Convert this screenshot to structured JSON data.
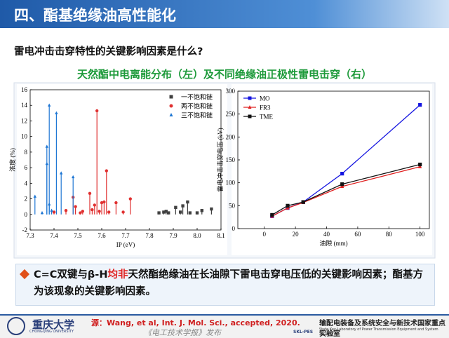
{
  "header": {
    "title": "四、酯基绝缘油高性能化"
  },
  "question": "雷电冲击击穿特性的关键影响因素是什么?",
  "subtitle": "天然酯中电离能分布（左）及不同绝缘油正极性雷电击穿（右）",
  "chart_data": [
    {
      "type": "stem",
      "xlabel": "IP (eV)",
      "ylabel": "浓度 (%)",
      "xlim": [
        7.3,
        8.1
      ],
      "xticks": [
        7.3,
        7.4,
        7.5,
        7.6,
        7.7,
        7.8,
        7.9,
        {
          "value": 8,
          "label": "8.0"
        },
        8.1
      ],
      "ylim": [
        -2,
        16
      ],
      "yticks": [
        -2,
        0,
        2,
        4,
        6,
        8,
        10,
        12,
        14,
        16
      ],
      "legend": "upper right",
      "series": [
        {
          "name": "一不饱和链",
          "color": "#404040",
          "marker": "square",
          "x": [
            7.84,
            7.86,
            7.87,
            7.88,
            7.91,
            7.93,
            7.94,
            7.96,
            7.97,
            8.0,
            8.02,
            8.06
          ],
          "values": [
            0.2,
            0.3,
            0.4,
            0.2,
            0.9,
            0.3,
            1.1,
            1.6,
            0.2,
            0.2,
            0.5,
            0.7
          ]
        },
        {
          "name": "两不饱和链",
          "color": "#e03030",
          "marker": "circle",
          "x": [
            7.4,
            7.45,
            7.48,
            7.49,
            7.51,
            7.52,
            7.55,
            7.56,
            7.57,
            7.58,
            7.59,
            7.6,
            7.61,
            7.62,
            7.63,
            7.66,
            7.69,
            7.72
          ],
          "values": [
            0.3,
            0.5,
            2.2,
            1.0,
            0.2,
            0.4,
            2.7,
            0.6,
            1.2,
            13.3,
            0.4,
            1.5,
            1.6,
            5.6,
            0.3,
            1.5,
            0.3,
            2.0
          ]
        },
        {
          "name": "三不饱和链",
          "color": "#1f77d4",
          "marker": "triangle",
          "x": [
            7.32,
            7.35,
            7.37,
            7.37,
            7.38,
            7.38,
            7.39,
            7.41,
            7.43,
            7.48
          ],
          "values": [
            2.3,
            0.2,
            8.7,
            6.5,
            14.0,
            1.3,
            0.5,
            13.0,
            5.3,
            4.8
          ]
        }
      ]
    },
    {
      "type": "line",
      "xlabel": "油隙 (mm)",
      "ylabel": "雷电冲击击穿电压 (kV)",
      "xlim": [
        -17,
        106
      ],
      "xticks": [
        0,
        20,
        40,
        60,
        80,
        100
      ],
      "ylim": [
        0,
        300
      ],
      "yticks": [
        0,
        50,
        100,
        150,
        200,
        250,
        300
      ],
      "legend": "upper left",
      "series": [
        {
          "name": "MO",
          "color": "#1414e0",
          "marker": "square",
          "x": [
            5,
            15,
            25,
            50,
            100
          ],
          "values": [
            27,
            45,
            58,
            120,
            270
          ]
        },
        {
          "name": "FR3",
          "color": "#e02020",
          "marker": "triangle",
          "x": [
            5,
            15,
            25,
            50,
            100
          ],
          "values": [
            27,
            45,
            57,
            92,
            135
          ]
        },
        {
          "name": "TME",
          "color": "#111111",
          "marker": "square",
          "x": [
            5,
            15,
            25,
            50,
            100
          ],
          "values": [
            30,
            50,
            58,
            97,
            140
          ]
        }
      ]
    }
  ],
  "bullet": {
    "part1": "C=C双键与β-H",
    "highlight": "均非",
    "part2": "天然酯绝缘油在长油隙下雷电击穿电压低的关键影响因素；酯基方为该现象的关键影响因素。"
  },
  "footer": {
    "university": "重庆大学",
    "university_en": "CHONGQING UNIVERSITY",
    "source": "源：Wang, et al, Int. J. Mol. Sci., accepted, 2020.",
    "watermark": "《电工技术学报》发布",
    "lab": "输配电装备及系统安全与新技术国家重点实验室",
    "lab_en": "State Key Laboratory of Power Transmission Equipment and System Security",
    "lab_short": "SKL-PES"
  }
}
